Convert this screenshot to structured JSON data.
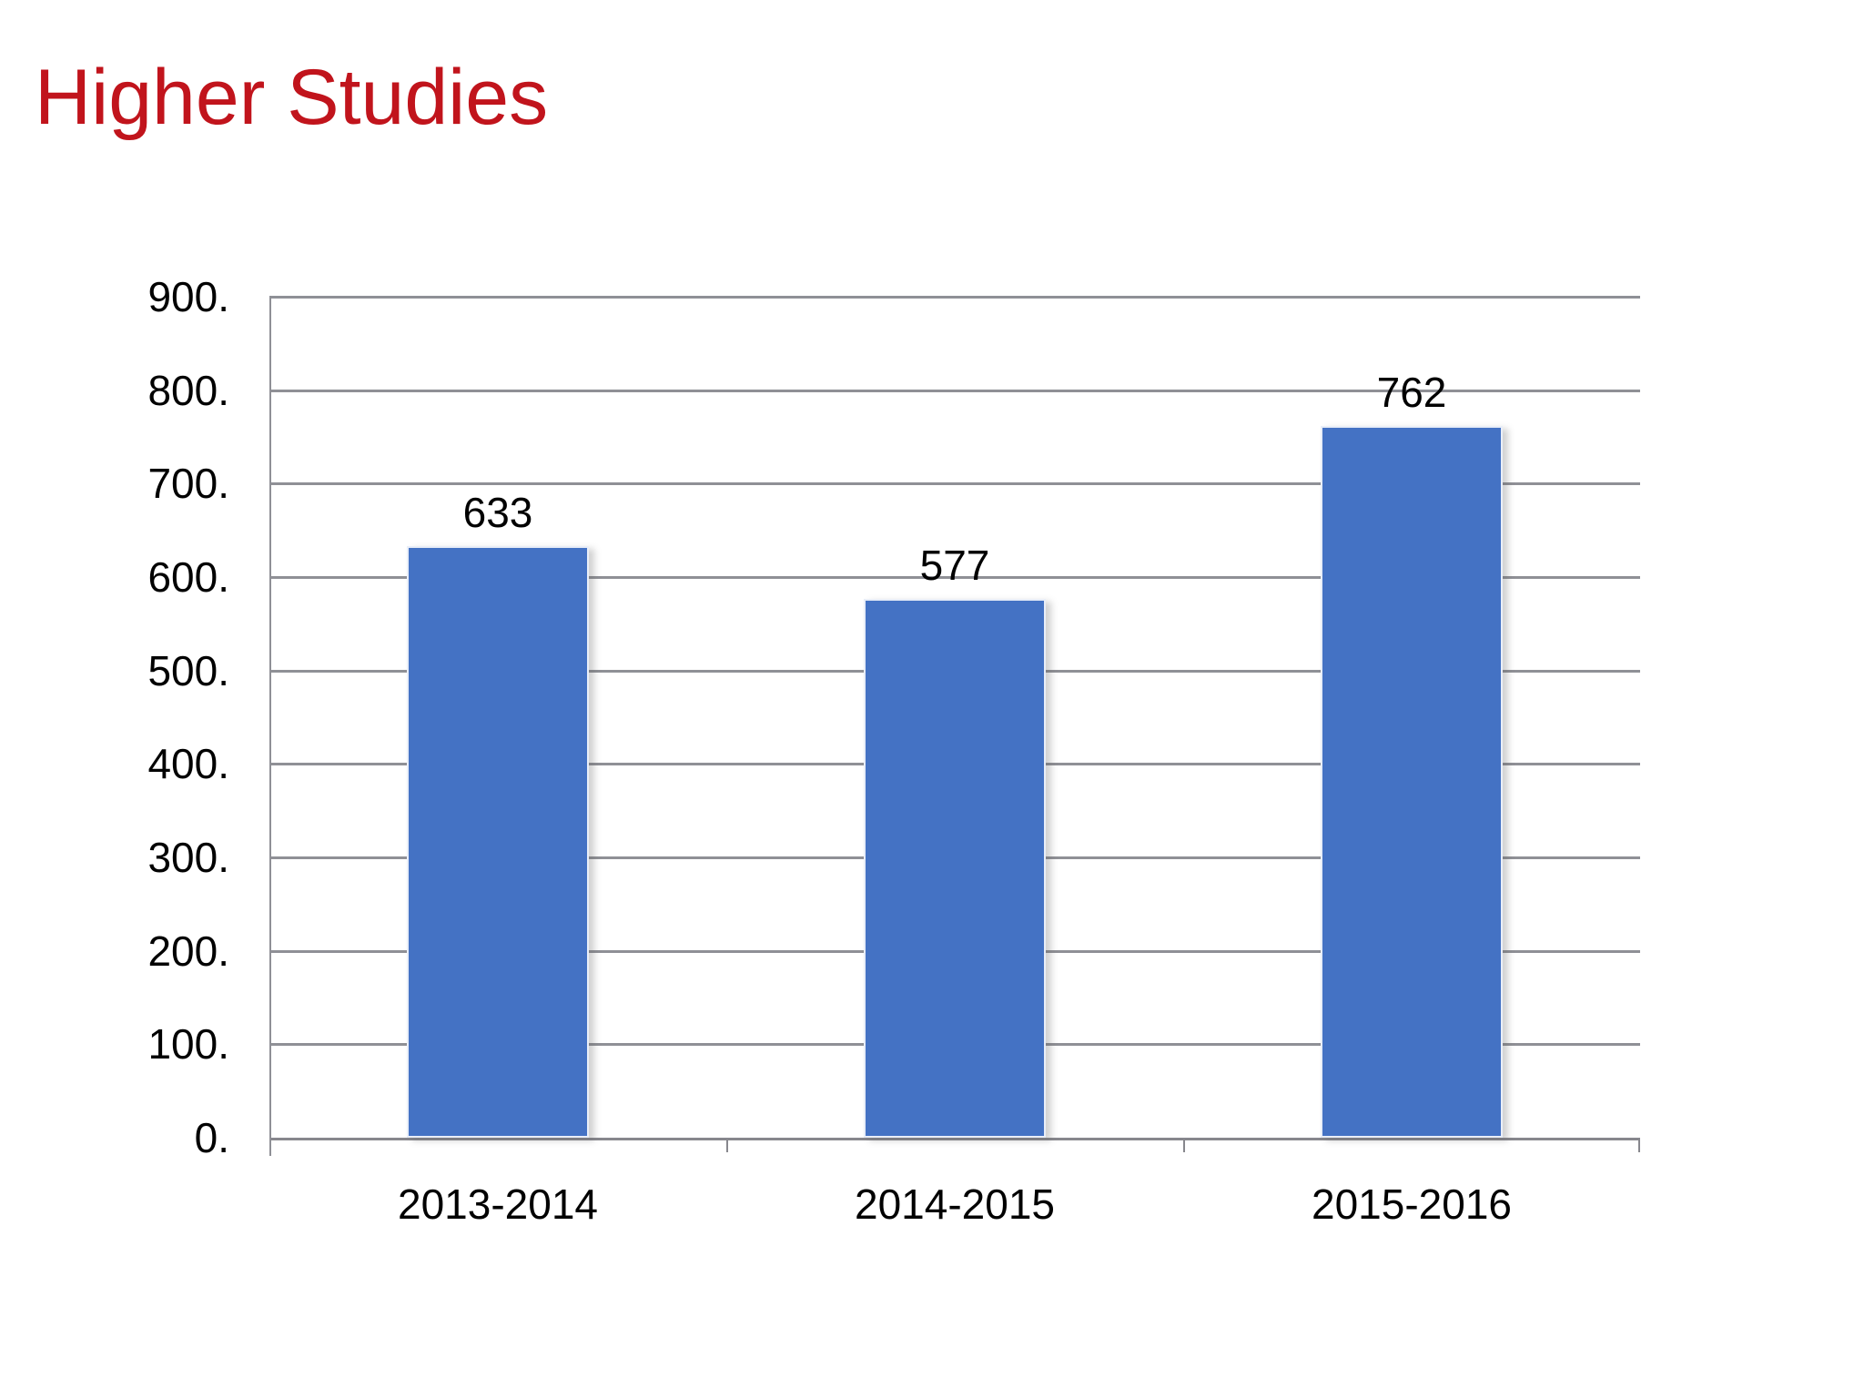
{
  "page": {
    "background": "#ffffff"
  },
  "title": {
    "text": "Higher Studies",
    "color": "#C1141C"
  },
  "chart_data": {
    "type": "bar",
    "title": "Higher Studies",
    "categories": [
      "2013-2014",
      "2014-2015",
      "2015-2016"
    ],
    "values": [
      633,
      577,
      762
    ],
    "data_labels": [
      "633",
      "577",
      "762"
    ],
    "y_ticks": [
      "0.",
      "100.",
      "200.",
      "300.",
      "400.",
      "500.",
      "600.",
      "700.",
      "800.",
      "900."
    ],
    "ylim": [
      0,
      900
    ],
    "y_step": 100,
    "grid": true,
    "legend_position": "none",
    "xlabel": "",
    "ylabel": "",
    "bar_color": "#4472C4",
    "bar_border_color": "#E9EEF8",
    "gridline_color": "#8F9096",
    "axis_color": "#87878D",
    "label_color": "#000000"
  }
}
